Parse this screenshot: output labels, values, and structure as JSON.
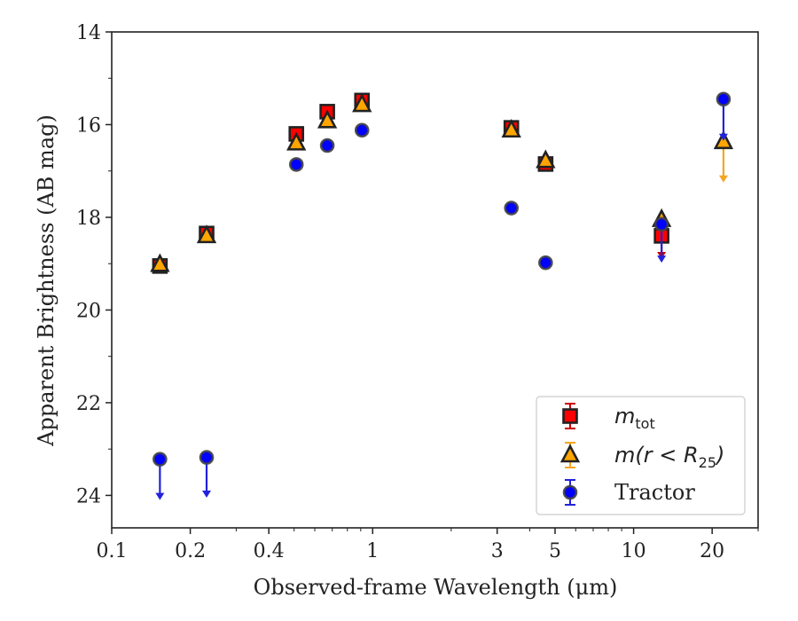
{
  "chart_data": {
    "type": "scatter",
    "xlabel": "Observed-frame Wavelength (μm)",
    "ylabel": "Apparent Brightness (AB mag)",
    "xscale": "log",
    "xlim": [
      0.1,
      30
    ],
    "ylim": [
      24.7,
      14
    ],
    "y_inverted": true,
    "grid": false,
    "legend_position": "bottom-right",
    "x_ticks": [
      {
        "value": 0.1,
        "label": "0.1"
      },
      {
        "value": 0.2,
        "label": "0.2"
      },
      {
        "value": 0.4,
        "label": "0.4"
      },
      {
        "value": 1,
        "label": "1"
      },
      {
        "value": 3,
        "label": "3"
      },
      {
        "value": 5,
        "label": "5"
      },
      {
        "value": 10,
        "label": "10"
      },
      {
        "value": 20,
        "label": "20"
      }
    ],
    "y_ticks": [
      {
        "value": 14,
        "label": "14"
      },
      {
        "value": 16,
        "label": "16"
      },
      {
        "value": 18,
        "label": "18"
      },
      {
        "value": 20,
        "label": "20"
      },
      {
        "value": 22,
        "label": "22"
      },
      {
        "value": 24,
        "label": "24"
      }
    ],
    "series": [
      {
        "name": "m_tot",
        "label_main": "m",
        "label_sub": "tot",
        "marker": "square",
        "color": "#ff0000",
        "edgecolor": "#222222",
        "errcolor": "#cc0000",
        "points": [
          {
            "x": 0.153,
            "y": 19.05
          },
          {
            "x": 0.231,
            "y": 18.35
          },
          {
            "x": 0.51,
            "y": 16.2
          },
          {
            "x": 0.67,
            "y": 15.72
          },
          {
            "x": 0.91,
            "y": 15.48
          },
          {
            "x": 3.4,
            "y": 16.07
          },
          {
            "x": 4.6,
            "y": 16.85
          },
          {
            "x": 12.8,
            "y": 18.4,
            "upper_limit": true,
            "arrow_to": 18.9
          }
        ]
      },
      {
        "name": "m(r < R25)",
        "label_main": "m(r < R",
        "label_sub": "25",
        "label_tail": ")",
        "marker": "triangle",
        "color": "#ffa500",
        "edgecolor": "#222222",
        "errcolor": "#f5a623",
        "points": [
          {
            "x": 0.153,
            "y": 19.02
          },
          {
            "x": 0.231,
            "y": 18.4
          },
          {
            "x": 0.51,
            "y": 16.4
          },
          {
            "x": 0.67,
            "y": 15.92
          },
          {
            "x": 0.91,
            "y": 15.57
          },
          {
            "x": 3.4,
            "y": 16.12
          },
          {
            "x": 4.6,
            "y": 16.78
          },
          {
            "x": 12.8,
            "y": 18.05
          },
          {
            "x": 22.1,
            "y": 16.37,
            "upper_limit": true,
            "arrow_to": 17.25
          }
        ]
      },
      {
        "name": "Tractor",
        "label_main": "Tractor",
        "marker": "circle",
        "color": "#0000ff",
        "edgecolor": "#444444",
        "errcolor": "#2222dd",
        "points": [
          {
            "x": 0.153,
            "y": 23.22,
            "upper_limit": true,
            "arrow_to": 24.1
          },
          {
            "x": 0.231,
            "y": 23.18,
            "upper_limit": true,
            "arrow_to": 24.05
          },
          {
            "x": 0.51,
            "y": 16.86
          },
          {
            "x": 0.67,
            "y": 16.45
          },
          {
            "x": 0.91,
            "y": 16.12
          },
          {
            "x": 3.4,
            "y": 17.8
          },
          {
            "x": 4.6,
            "y": 18.98
          },
          {
            "x": 12.8,
            "y": 18.15,
            "upper_limit": true,
            "arrow_to": 18.98
          },
          {
            "x": 22.1,
            "y": 15.45,
            "upper_limit": true,
            "arrow_to": 16.35
          }
        ]
      }
    ]
  }
}
